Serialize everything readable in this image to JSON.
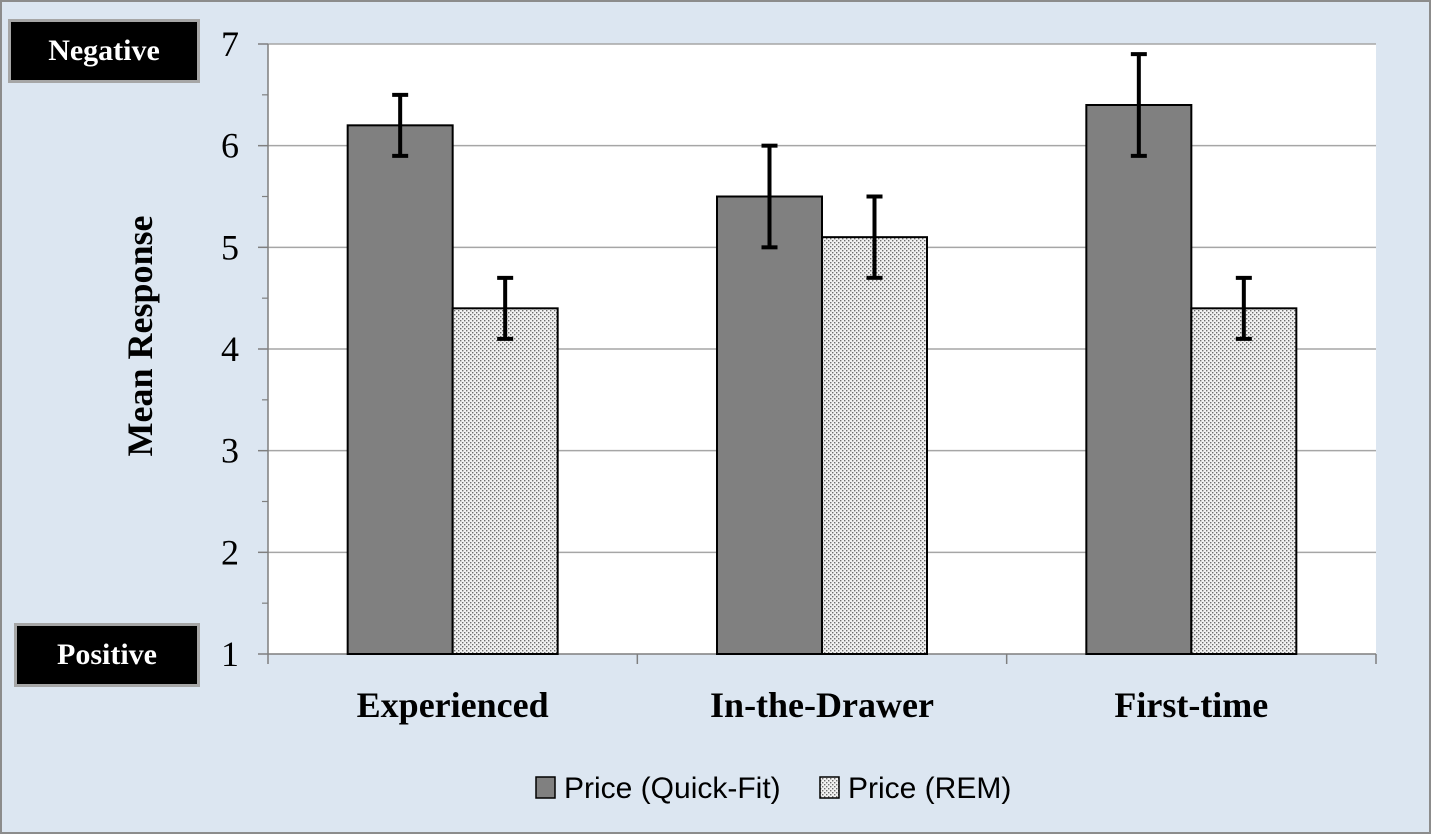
{
  "annotations": {
    "negative": "Negative",
    "positive": "Positive"
  },
  "chart_data": {
    "type": "bar",
    "title": "",
    "xlabel": "",
    "ylabel": "Mean Response",
    "ylim": [
      1,
      7
    ],
    "yticks": [
      "1",
      "2",
      "3",
      "4",
      "5",
      "6",
      "7"
    ],
    "grid": true,
    "legend_position": "bottom",
    "categories": [
      "Experienced",
      "In-the-Drawer",
      "First-time"
    ],
    "series": [
      {
        "name": "Price (Quick-Fit)",
        "values": [
          6.2,
          5.5,
          6.4
        ],
        "error_low": [
          5.9,
          5.0,
          5.9
        ],
        "error_high": [
          6.5,
          6.0,
          6.9
        ],
        "color": "#808080",
        "pattern": "solid"
      },
      {
        "name": "Price (REM)",
        "values": [
          4.4,
          5.1,
          4.4
        ],
        "error_low": [
          4.1,
          4.7,
          4.1
        ],
        "error_high": [
          4.7,
          5.5,
          4.7
        ],
        "color": "#e6e6e6",
        "pattern": "dots"
      }
    ]
  }
}
